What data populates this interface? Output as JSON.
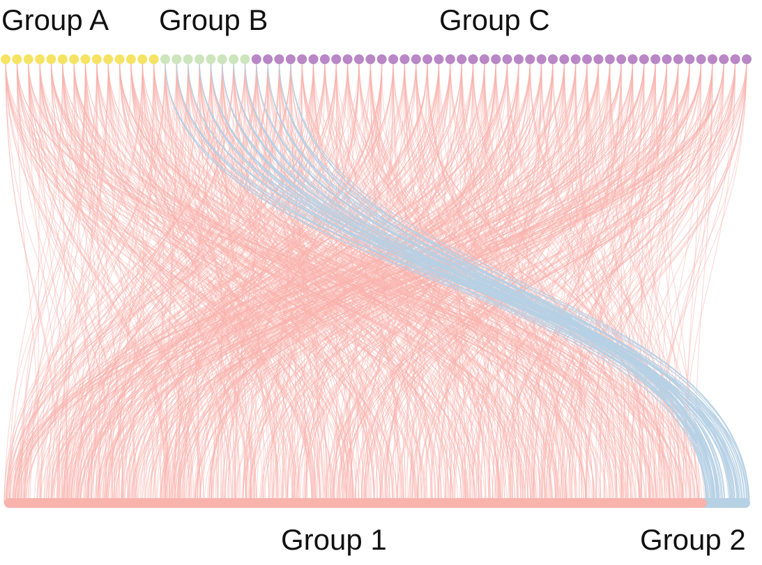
{
  "title": "",
  "top_groups": [
    {
      "name": "Group A",
      "node_count": 14,
      "color": "#f5e463"
    },
    {
      "name": "Group B",
      "node_count": 8,
      "color": "#cce5bd"
    },
    {
      "name": "Group C",
      "node_count": 44,
      "color": "#b986c6"
    }
  ],
  "bottom_groups": [
    {
      "name": "Group 1",
      "share": 0.94,
      "color": "#f9b3ad"
    },
    {
      "name": "Group 2",
      "share": 0.06,
      "color": "#b6d0e4"
    }
  ],
  "link_colors": {
    "to_group_1": "#f9b3ad",
    "to_group_2": "#b6d0e4"
  }
}
